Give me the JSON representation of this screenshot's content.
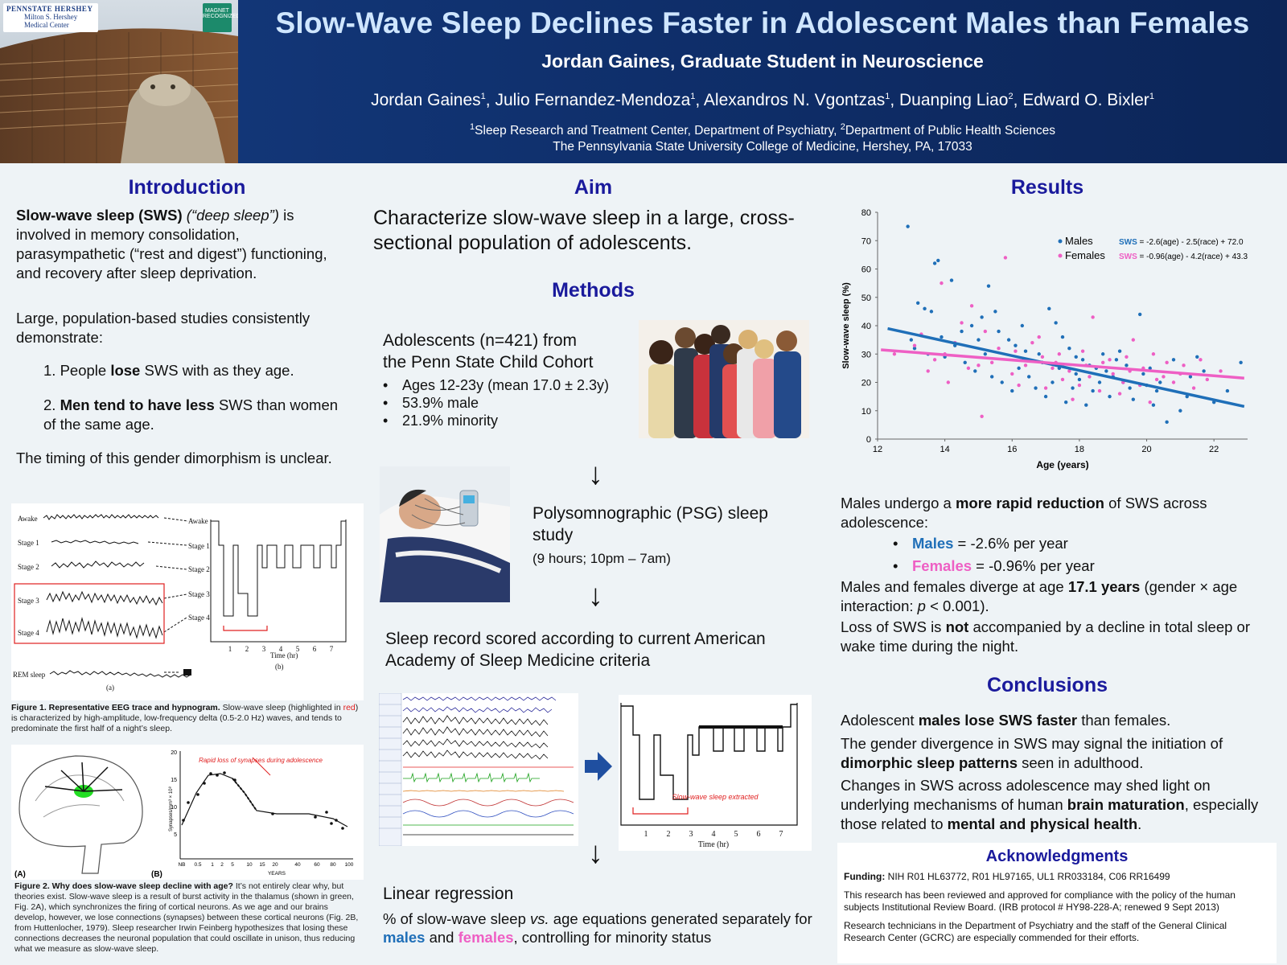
{
  "header": {
    "logo_line1": "PENNSTATE HERSHEY",
    "logo_line2": "Milton S. Hershey",
    "logo_line3": "Medical Center",
    "magnet_label": "MAGNET RECOGNIZED",
    "title": "Slow-Wave Sleep Declines Faster in Adolescent Males than Females",
    "subtitle": "Jordan Gaines, Graduate Student in Neuroscience",
    "authors": [
      {
        "name": "Jordan Gaines",
        "sup": "1"
      },
      {
        "name": "Julio Fernandez-Mendoza",
        "sup": "1"
      },
      {
        "name": "Alexandros N. Vgontzas",
        "sup": "1"
      },
      {
        "name": "Duanping Liao",
        "sup": "2"
      },
      {
        "name": "Edward O. Bixler",
        "sup": "1"
      }
    ],
    "affil_sup1": "1",
    "affil_1": "Sleep Research and Treatment Center, Department of Psychiatry, ",
    "affil_sup2": "2",
    "affil_2": "Department of Public Health Sciences",
    "affil_3": "The Pennsylvania State University College of Medicine, Hershey, PA, 17033"
  },
  "intro": {
    "heading": "Introduction",
    "p1_bold": "Slow-wave sleep (SWS)",
    "p1_italic": " (“deep sleep”)",
    "p1_rest": " is involved in memory consolidation, parasympathetic (“rest and digest”) functioning, and recovery after sleep deprivation.",
    "p2": "Large, population-based studies consistently demonstrate:",
    "item1_a": "1. People ",
    "item1_b": "lose",
    "item1_c": " SWS with as they age.",
    "item2_a": "2. ",
    "item2_b": "Men tend to have less",
    "item2_c": " SWS than women of the same age.",
    "p3": "The timing of this gender dimorphism is unclear.",
    "fig1": {
      "stages_left": [
        "Awake",
        "Stage 1",
        "Stage 2",
        "Stage 3",
        "Stage 4",
        "REM sleep"
      ],
      "stages_right": [
        "Awake",
        "Stage 1",
        "Stage 2",
        "Stage 3",
        "Stage 4"
      ],
      "x_ticks": [
        "1",
        "2",
        "3",
        "4",
        "5",
        "6",
        "7"
      ],
      "x_label": "Time (hr)",
      "label_a": "(a)",
      "label_b": "(b)",
      "caption_bold": "Figure 1. Representative EEG trace and hypnogram.",
      "caption_1": " Slow-wave sleep (highlighted in ",
      "caption_red": "red",
      "caption_2": ") is characterized by high-amplitude, low-frequency delta (0.5-2.0 Hz) waves, and tends to predominate the first half of a night’s sleep."
    },
    "fig2": {
      "label_a": "(A)",
      "label_b": "(B)",
      "annotation": "Rapid loss of synapses during adolescence",
      "y_label": "Synapses/mm³ × 10⁸",
      "y_ticks": [
        "20",
        "15",
        "10",
        "5"
      ],
      "x_ticks": [
        "NB",
        "0.5",
        "1",
        "2",
        "5",
        "10",
        "15",
        "20",
        "40",
        "60",
        "80",
        "100"
      ],
      "x_label": "YEARS",
      "caption_bold": "Figure 2. Why does slow-wave sleep decline with age?",
      "caption": " It’s not entirely clear why, but theories exist. Slow-wave sleep is a result of burst activity in the thalamus (shown in green, Fig. 2A), which synchronizes the firing of cortical neurons. As we age and our brains develop, however, we lose connections (synapses) between these cortical neurons (Fig. 2B, from Huttenlocher, 1979). Sleep researcher Irwin Feinberg hypothesizes that losing these connections decreases the neuronal population that could oscillate in unison, thus reducing what we measure as slow-wave sleep."
    }
  },
  "aim": {
    "heading": "Aim",
    "text": "Characterize slow-wave sleep in a large, cross-sectional population of adolescents."
  },
  "methods": {
    "heading": "Methods",
    "cohort_line1": "Adolescents (n=421) from",
    "cohort_line2": "the Penn State Child Cohort",
    "bullets": [
      "Ages 12-23y (mean 17.0 ± 2.3y)",
      "53.9% male",
      "21.9% minority"
    ],
    "psg_title": "Polysomnographic (PSG) sleep study",
    "psg_sub": "(9 hours; 10pm – 7am)",
    "scoring": "Sleep record scored according to current American Academy of Sleep Medicine criteria",
    "swsextract_label": "Slow-wave sleep extracted",
    "hyp_x_label": "Time (hr)",
    "regression_title": "Linear regression",
    "regression_a": "% of slow-wave sleep ",
    "regression_vs": "vs.",
    "regression_b": " age equations generated separately for ",
    "regression_males": "males",
    "regression_and": " and ",
    "regression_females": "females",
    "regression_c": ", controlling for minority status"
  },
  "results": {
    "heading": "Results",
    "p1_a": "Males undergo a ",
    "p1_b": "more rapid reduction",
    "p1_c": " of SWS across adolescence:",
    "males_label": "Males",
    "males_rate": " = -2.6% per year",
    "females_label": "Females",
    "females_rate": " = -0.96% per year",
    "p2_a": "Males and females diverge at age ",
    "p2_b": "17.1 years",
    "p2_c": " (gender × age interaction: ",
    "p2_p": "p",
    "p2_d": " < 0.001).",
    "p3_a": "Loss of SWS is ",
    "p3_b": "not",
    "p3_c": " accompanied by a decline in total sleep or wake time during the night."
  },
  "chart_data": {
    "type": "scatter",
    "xlabel": "Age (years)",
    "ylabel": "Slow-wave sleep (%)",
    "xlim": [
      12,
      23
    ],
    "ylim": [
      0,
      80
    ],
    "x_ticks": [
      12,
      14,
      16,
      18,
      20,
      22
    ],
    "y_ticks": [
      0,
      10,
      20,
      30,
      40,
      50,
      60,
      70,
      80
    ],
    "legend_position": "top-right",
    "series": [
      {
        "name": "Males",
        "color": "#1f6fb8",
        "equation_label": "SWS",
        "equation": " = -2.6(age) - 2.5(race) + 72.0",
        "trend": {
          "x0": 12.3,
          "y0": 39,
          "x1": 22.9,
          "y1": 11.5
        },
        "points": [
          [
            12.9,
            75
          ],
          [
            13.7,
            62
          ],
          [
            13.8,
            63
          ],
          [
            13.2,
            48
          ],
          [
            13.4,
            46
          ],
          [
            13.6,
            45
          ],
          [
            14.2,
            56
          ],
          [
            14.5,
            38
          ],
          [
            15.3,
            54
          ],
          [
            15.5,
            45
          ],
          [
            15.1,
            43
          ],
          [
            14.8,
            40
          ],
          [
            15.6,
            38
          ],
          [
            15.9,
            35
          ],
          [
            16.1,
            33
          ],
          [
            16.4,
            31
          ],
          [
            16.8,
            30
          ],
          [
            17.1,
            46
          ],
          [
            17.3,
            41
          ],
          [
            17.5,
            36
          ],
          [
            17.7,
            32
          ],
          [
            17.9,
            29
          ],
          [
            18.1,
            28
          ],
          [
            18.3,
            26
          ],
          [
            18.5,
            25
          ],
          [
            18.8,
            24
          ],
          [
            19.0,
            22
          ],
          [
            19.3,
            20
          ],
          [
            19.5,
            18
          ],
          [
            19.8,
            44
          ],
          [
            20.1,
            25
          ],
          [
            20.3,
            17
          ],
          [
            20.6,
            6
          ],
          [
            20.8,
            28
          ],
          [
            21.2,
            15
          ],
          [
            21.5,
            29
          ],
          [
            22.0,
            13
          ],
          [
            22.4,
            17
          ],
          [
            22.8,
            27
          ],
          [
            13.0,
            35
          ],
          [
            13.5,
            30
          ],
          [
            14.0,
            29
          ],
          [
            14.3,
            33
          ],
          [
            14.6,
            27
          ],
          [
            14.9,
            24
          ],
          [
            15.2,
            30
          ],
          [
            15.4,
            22
          ],
          [
            15.7,
            20
          ],
          [
            16.0,
            17
          ],
          [
            16.2,
            25
          ],
          [
            16.5,
            22
          ],
          [
            16.7,
            18
          ],
          [
            17.0,
            15
          ],
          [
            17.2,
            20
          ],
          [
            17.4,
            25
          ],
          [
            17.6,
            13
          ],
          [
            17.8,
            18
          ],
          [
            18.0,
            21
          ],
          [
            18.2,
            12
          ],
          [
            18.4,
            17
          ],
          [
            18.6,
            20
          ],
          [
            18.9,
            15
          ],
          [
            19.1,
            28
          ],
          [
            19.4,
            26
          ],
          [
            19.6,
            14
          ],
          [
            19.9,
            23
          ],
          [
            20.2,
            12
          ],
          [
            20.4,
            20
          ],
          [
            21.0,
            10
          ],
          [
            21.3,
            22
          ],
          [
            13.1,
            32
          ],
          [
            13.9,
            36
          ],
          [
            15.0,
            35
          ],
          [
            16.3,
            40
          ],
          [
            16.9,
            27
          ],
          [
            17.9,
            23
          ],
          [
            18.7,
            30
          ],
          [
            19.2,
            31
          ],
          [
            20.0,
            19
          ],
          [
            21.7,
            24
          ]
        ]
      },
      {
        "name": "Females",
        "color": "#ee5fc4",
        "equation_label": "SWS",
        "equation": " = -0.96(age) - 4.2(race) + 43.3",
        "trend": {
          "x0": 12.1,
          "y0": 31.5,
          "x1": 22.9,
          "y1": 21.5
        },
        "points": [
          [
            12.5,
            30
          ],
          [
            13.1,
            33
          ],
          [
            13.5,
            24
          ],
          [
            13.9,
            55
          ],
          [
            14.1,
            20
          ],
          [
            14.5,
            41
          ],
          [
            14.8,
            47
          ],
          [
            15.1,
            8
          ],
          [
            15.4,
            27
          ],
          [
            15.8,
            64
          ],
          [
            16.0,
            23
          ],
          [
            16.2,
            19
          ],
          [
            16.6,
            34
          ],
          [
            16.9,
            29
          ],
          [
            17.2,
            25
          ],
          [
            17.5,
            21
          ],
          [
            17.8,
            14
          ],
          [
            18.1,
            31
          ],
          [
            18.4,
            43
          ],
          [
            18.7,
            27
          ],
          [
            19.0,
            23
          ],
          [
            19.3,
            20
          ],
          [
            19.6,
            35
          ],
          [
            19.9,
            25
          ],
          [
            20.2,
            30
          ],
          [
            20.5,
            22
          ],
          [
            20.8,
            20
          ],
          [
            21.1,
            26
          ],
          [
            21.4,
            18
          ],
          [
            21.8,
            21
          ],
          [
            22.2,
            24
          ],
          [
            13.3,
            37
          ],
          [
            13.7,
            28
          ],
          [
            14.3,
            34
          ],
          [
            14.7,
            25
          ],
          [
            15.2,
            38
          ],
          [
            15.6,
            32
          ],
          [
            16.4,
            26
          ],
          [
            16.8,
            36
          ],
          [
            17.0,
            18
          ],
          [
            17.4,
            30
          ],
          [
            17.7,
            24
          ],
          [
            18.0,
            19
          ],
          [
            18.3,
            22
          ],
          [
            18.6,
            17
          ],
          [
            18.9,
            28
          ],
          [
            19.2,
            16
          ],
          [
            19.5,
            24
          ],
          [
            19.8,
            19
          ],
          [
            20.1,
            13
          ],
          [
            20.6,
            27
          ],
          [
            21.0,
            23
          ],
          [
            14.0,
            30
          ],
          [
            15.0,
            26
          ],
          [
            16.1,
            31
          ],
          [
            17.3,
            27
          ],
          [
            18.2,
            26
          ],
          [
            19.4,
            29
          ],
          [
            20.3,
            21
          ],
          [
            21.6,
            28
          ]
        ]
      }
    ]
  },
  "conclusions": {
    "heading": "Conclusions",
    "p1_a": "Adolescent ",
    "p1_b": "males lose SWS faster",
    "p1_c": " than females.",
    "p2_a": "The gender divergence in SWS may signal the initiation of ",
    "p2_b": "dimorphic sleep patterns",
    "p2_c": " seen in adulthood.",
    "p3_a": "Changes in SWS across adolescence may shed light on underlying mechanisms of human ",
    "p3_b": "brain maturation",
    "p3_c": ", especially those related to ",
    "p3_d": "mental and physical health",
    "p3_e": "."
  },
  "ack": {
    "heading": "Acknowledgments",
    "funding_label": "Funding:",
    "funding": " NIH R01 HL63772, R01 HL97165, UL1 RR033184, C06 RR16499",
    "irb": "This research has been reviewed and approved for compliance with the policy of the human subjects Institutional Review Board. (IRB protocol # HY98-228-A; renewed 9 Sept 2013)",
    "thanks": "Research technicians in the Department of Psychiatry and the staff of the General Clinical Research Center (GCRC) are especially commended for their efforts."
  }
}
